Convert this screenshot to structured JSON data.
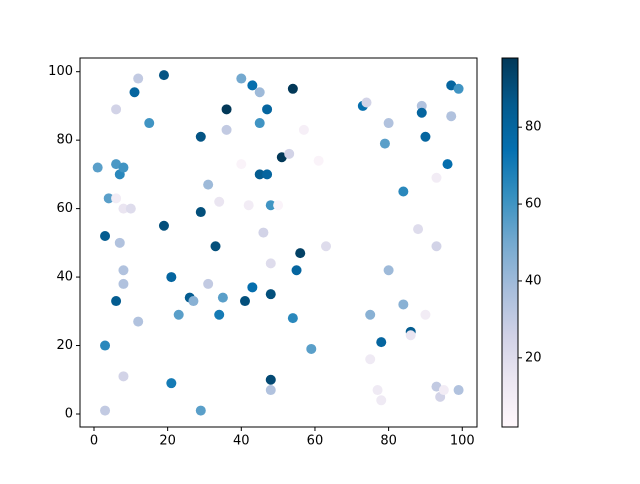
{
  "chart_data": {
    "type": "scatter",
    "x": [
      3,
      3,
      1,
      4,
      6,
      7,
      8,
      3,
      6,
      6,
      6,
      8,
      10,
      7,
      8,
      8,
      8,
      12,
      12,
      11,
      15,
      19,
      19,
      21,
      21,
      23,
      26,
      27,
      29,
      29,
      29,
      31,
      31,
      33,
      34,
      34,
      35,
      36,
      36,
      40,
      40,
      41,
      42,
      43,
      43,
      45,
      45,
      45,
      46,
      47,
      47,
      48,
      48,
      48,
      48,
      48,
      50,
      51,
      53,
      54,
      54,
      55,
      56,
      57,
      59,
      61,
      63,
      73,
      74,
      75,
      75,
      77,
      78,
      78,
      79,
      80,
      80,
      84,
      84,
      86,
      86,
      88,
      89,
      89,
      90,
      90,
      93,
      93,
      93,
      94,
      96,
      95,
      97,
      97,
      99,
      99
    ],
    "values": [
      1,
      20,
      72,
      63,
      73,
      70,
      72,
      52,
      33,
      89,
      63,
      60,
      60,
      50,
      42,
      38,
      11,
      27,
      98,
      94,
      85,
      99,
      55,
      40,
      9,
      29,
      34,
      33,
      81,
      59,
      1,
      67,
      38,
      49,
      62,
      29,
      34,
      89,
      83,
      98,
      73,
      33,
      61,
      96,
      37,
      94,
      85,
      70,
      53,
      89,
      70,
      61,
      44,
      35,
      10,
      7,
      61,
      75,
      76,
      95,
      28,
      42,
      47,
      83,
      19,
      74,
      49,
      90,
      91,
      29,
      16,
      7,
      21,
      4,
      79,
      85,
      42,
      65,
      32,
      24,
      23,
      54,
      90,
      88,
      29,
      81,
      69,
      49,
      8,
      5,
      73,
      7,
      96,
      87,
      95,
      7
    ],
    "c": [
      30,
      65,
      55,
      55,
      58,
      65,
      60,
      85,
      85,
      25,
      10,
      15,
      20,
      35,
      35,
      35,
      25,
      35,
      30,
      80,
      60,
      88,
      90,
      80,
      70,
      55,
      85,
      45,
      88,
      90,
      55,
      40,
      30,
      90,
      15,
      70,
      55,
      98,
      30,
      50,
      5,
      90,
      10,
      75,
      75,
      40,
      60,
      85,
      25,
      80,
      80,
      60,
      20,
      90,
      92,
      35,
      5,
      98,
      25,
      98,
      65,
      80,
      95,
      8,
      55,
      5,
      20,
      75,
      25,
      45,
      12,
      12,
      80,
      12,
      55,
      35,
      40,
      65,
      45,
      85,
      15,
      20,
      35,
      80,
      10,
      80,
      10,
      25,
      30,
      25,
      75,
      10,
      80,
      35,
      60,
      35
    ],
    "xlim": [
      -3.8,
      104
    ],
    "ylim": [
      -3.8,
      104
    ],
    "xticks": [
      0,
      20,
      40,
      60,
      80,
      100
    ],
    "yticks": [
      0,
      20,
      40,
      60,
      80,
      100
    ],
    "colormap": "PuBu",
    "clim": [
      2,
      98
    ],
    "cticks": [
      20,
      40,
      60,
      80
    ]
  }
}
